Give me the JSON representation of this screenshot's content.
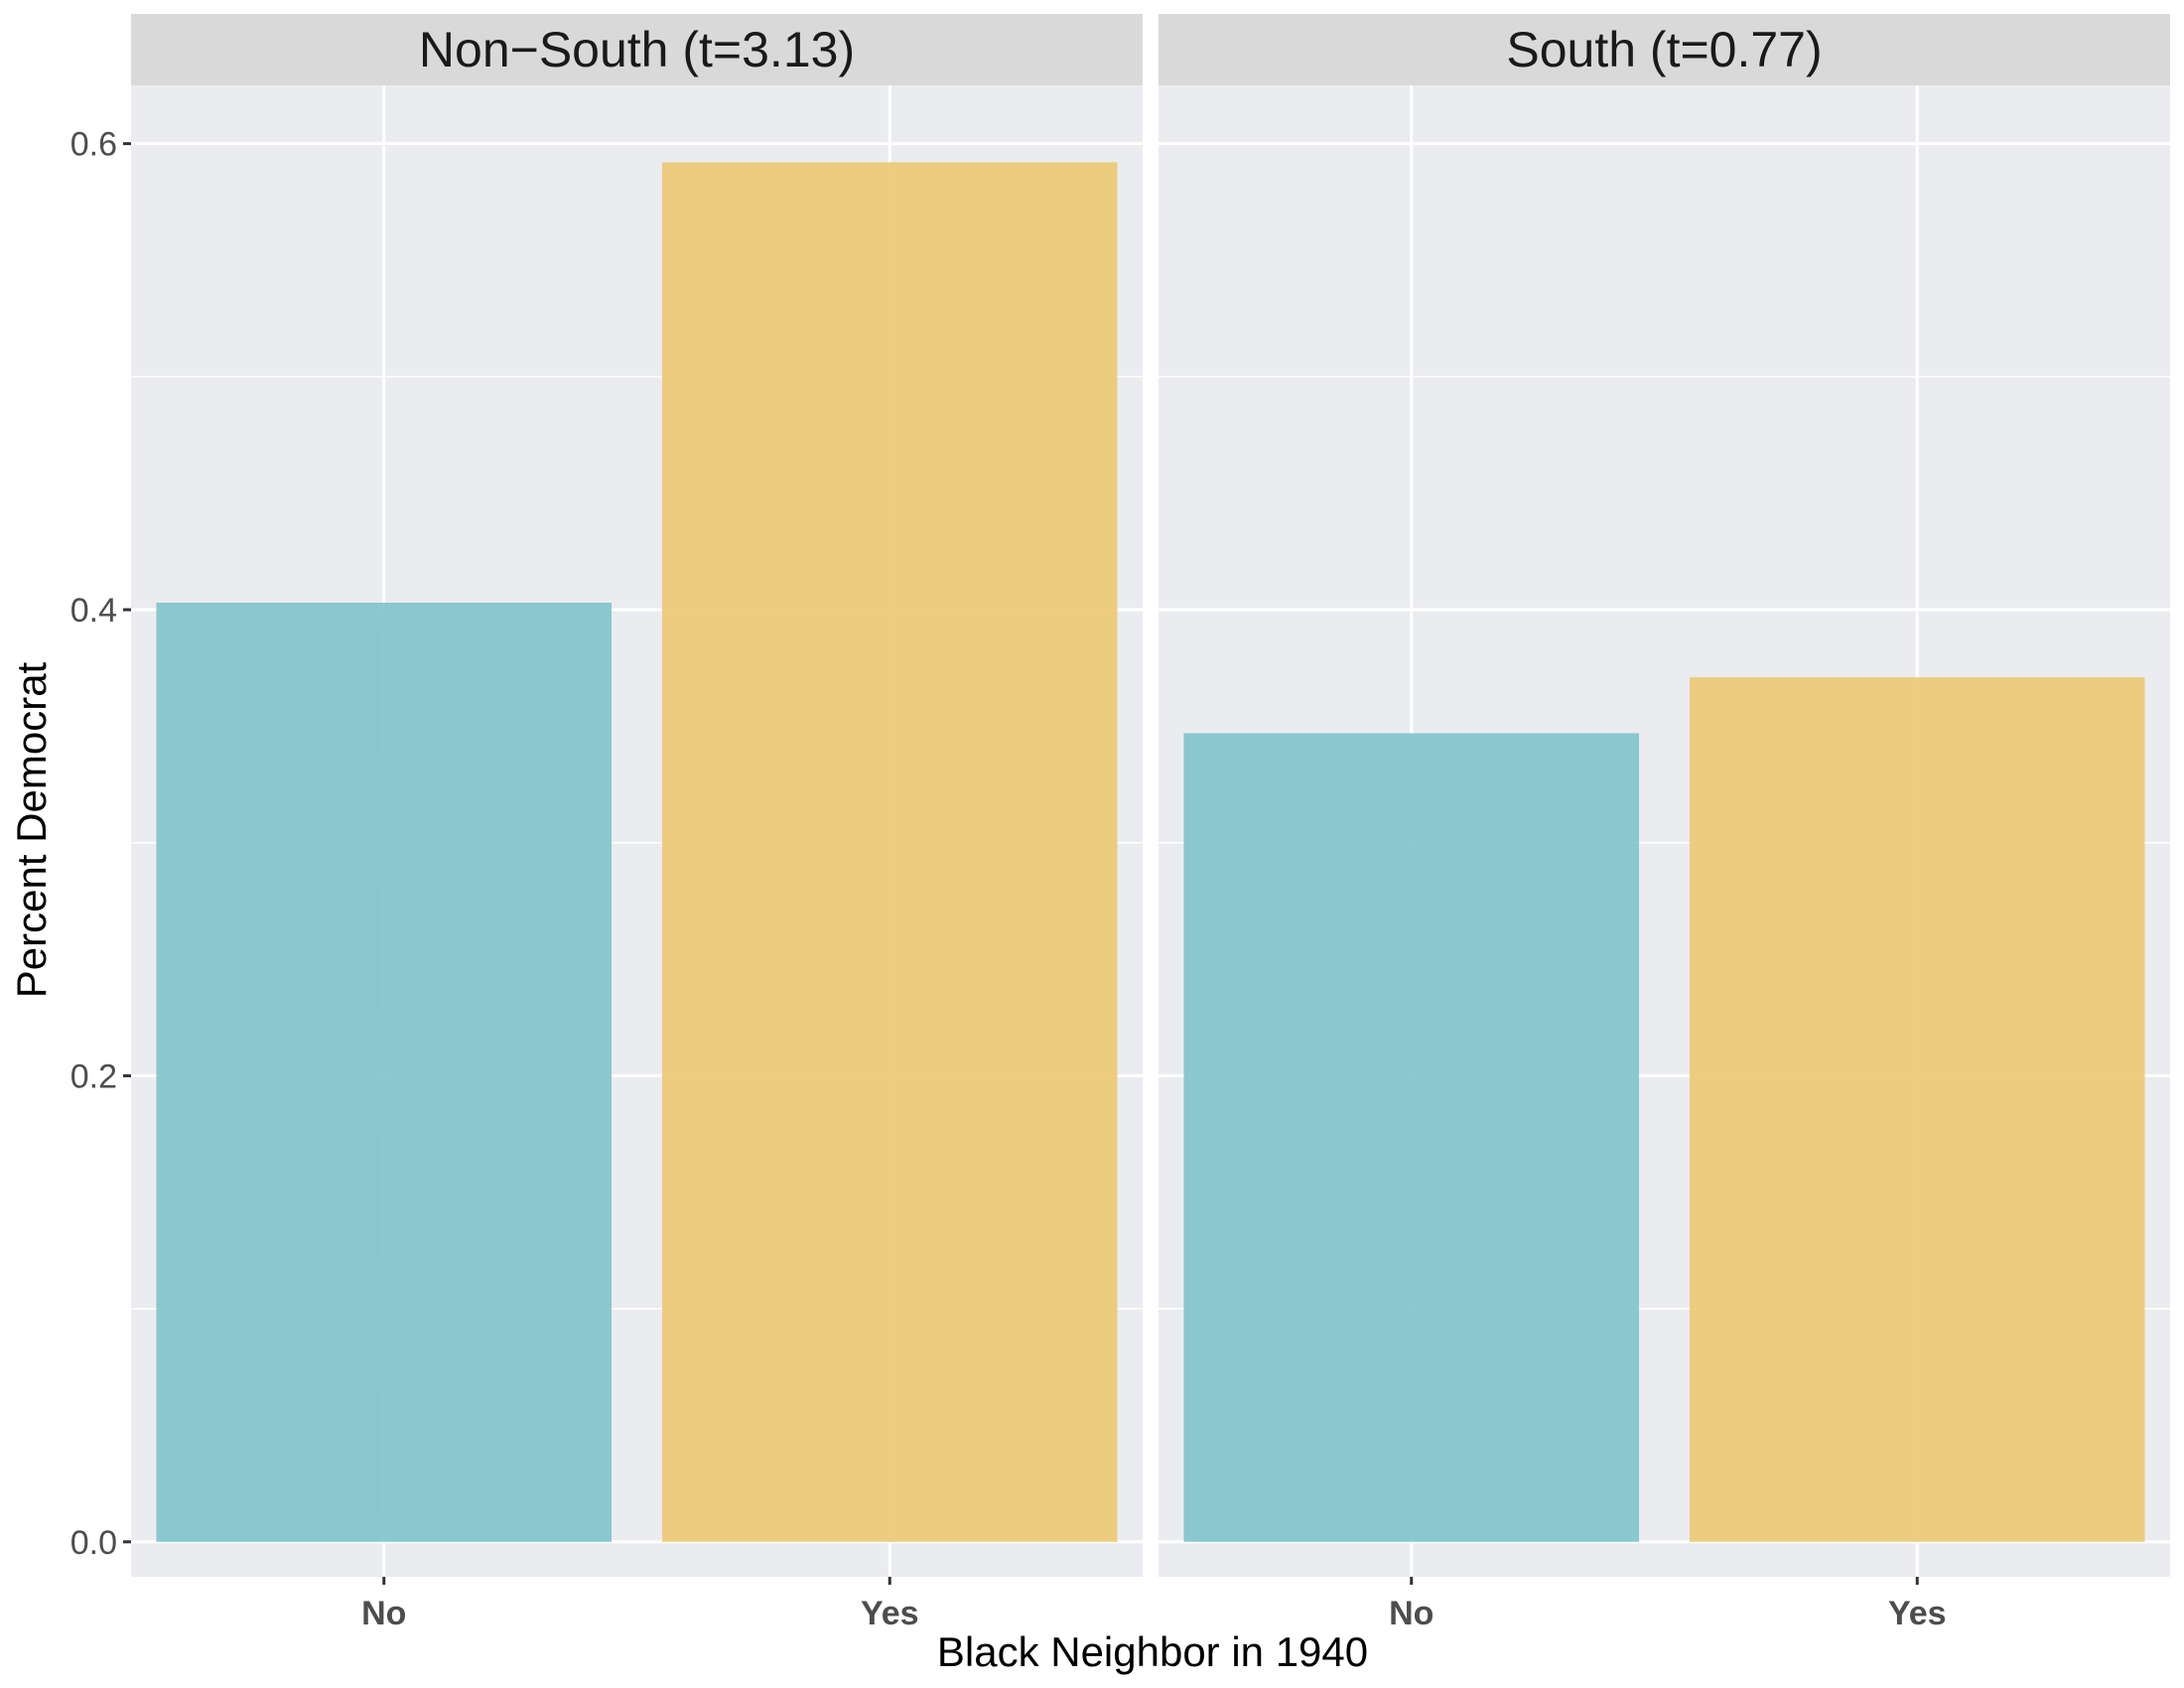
{
  "chart_data": {
    "type": "bar",
    "xlabel": "Black Neighbor in 1940",
    "ylabel": "Percent Democrat",
    "ylim": [
      -0.015,
      0.625
    ],
    "yticks": [
      "0.0",
      "0.2",
      "0.4",
      "0.6"
    ],
    "categories": [
      "No",
      "Yes"
    ],
    "grid": true,
    "colors": {
      "No": "#7FC4CB",
      "Yes": "#EBC975"
    },
    "facets": [
      {
        "title": "Non−South (t=3.13)",
        "values": [
          0.403,
          0.592
        ]
      },
      {
        "title": "South (t=0.77)",
        "values": [
          0.347,
          0.371
        ]
      }
    ]
  }
}
